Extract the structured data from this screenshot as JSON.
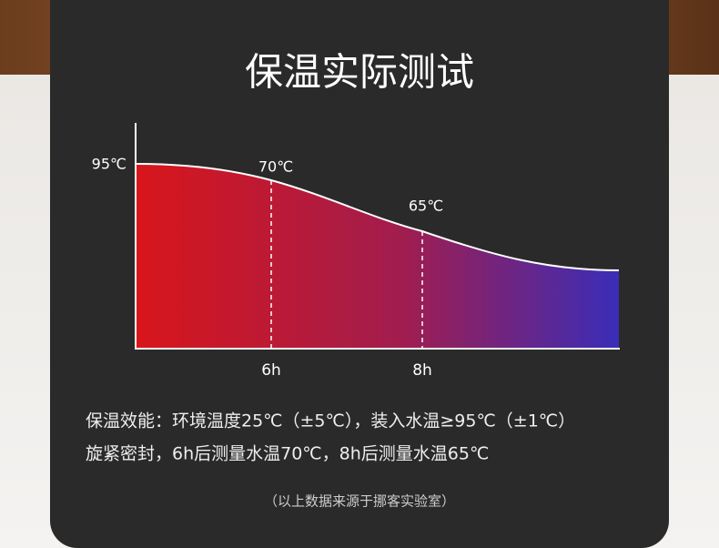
{
  "title": "保温实际测试",
  "chart": {
    "start_label": "95℃",
    "points": [
      {
        "label": "70℃",
        "x_label": "6h"
      },
      {
        "label": "65℃",
        "x_label": "8h"
      }
    ]
  },
  "description": [
    "保温效能：环境温度25℃（±5℃），装入水温≥95℃（±1℃）",
    "旋紧密封，6h后测量水温70℃，8h后测量水温65℃"
  ],
  "footnote": "（以上数据来源于挪客实验室）"
}
